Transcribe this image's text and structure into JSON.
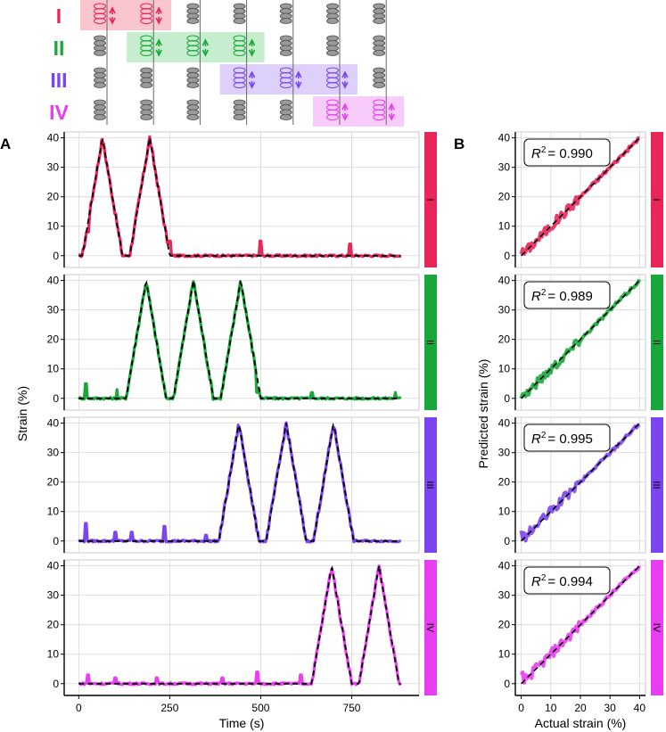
{
  "schematic": {
    "rows": [
      {
        "label": "I",
        "color": "#e8265a",
        "fill": "#f9c5cf"
      },
      {
        "label": "II",
        "color": "#18a83a",
        "fill": "#c6edce"
      },
      {
        "label": "III",
        "color": "#7b46f0",
        "fill": "#ddd0fb"
      },
      {
        "label": "IV",
        "color": "#e83df0",
        "fill": "#f8ccfa"
      }
    ],
    "sensor_columns": 7,
    "highlight_spans": [
      [
        0,
        1
      ],
      [
        1,
        3
      ],
      [
        3,
        5
      ],
      [
        5,
        6
      ]
    ]
  },
  "panel_letters": {
    "a": "A",
    "b": "B"
  },
  "chart_data": [
    {
      "type": "line",
      "panel": "A",
      "xlabel": "Time (s)",
      "ylabel": "Strain (%)",
      "xlim": [
        -40,
        935
      ],
      "ylim": [
        -4,
        42
      ],
      "xticks": [
        0,
        250,
        500,
        750
      ],
      "yticks": [
        0,
        10,
        20,
        30,
        40
      ],
      "grid": true,
      "facets": [
        {
          "strip_label": "I",
          "color": "#e8265a",
          "peaks": [
            65,
            195
          ],
          "spikes": [
            [
              25,
              8
            ],
            [
              250,
              5
            ],
            [
              500,
              5
            ],
            [
              745,
              4
            ]
          ]
        },
        {
          "strip_label": "II",
          "color": "#18a83a",
          "peaks": [
            185,
            315,
            445
          ],
          "spikes": [
            [
              20,
              5
            ],
            [
              105,
              3
            ],
            [
              490,
              2
            ],
            [
              640,
              2
            ],
            [
              870,
              2
            ]
          ]
        },
        {
          "strip_label": "III",
          "color": "#7b46f0",
          "peaks": [
            440,
            570,
            700
          ],
          "spikes": [
            [
              20,
              6
            ],
            [
              100,
              3
            ],
            [
              145,
              3
            ],
            [
              235,
              5
            ],
            [
              350,
              2
            ]
          ]
        },
        {
          "strip_label": "IV",
          "color": "#e83df0",
          "peaks": [
            695,
            825
          ],
          "spikes": [
            [
              25,
              3
            ],
            [
              100,
              2
            ],
            [
              215,
              2
            ],
            [
              395,
              2
            ],
            [
              490,
              4
            ],
            [
              610,
              3
            ]
          ]
        }
      ],
      "peak_value": 40,
      "reference_line": {
        "style": "dashed",
        "color": "#000000",
        "name": "Actual strain"
      }
    },
    {
      "type": "scatter",
      "panel": "B",
      "xlabel": "Actual strain (%)",
      "ylabel": "Predicted strain (%)",
      "xlim": [
        -2,
        42
      ],
      "ylim": [
        -4,
        42
      ],
      "xticks": [
        0,
        10,
        20,
        30,
        40
      ],
      "yticks": [
        0,
        10,
        20,
        30,
        40
      ],
      "grid": true,
      "facets": [
        {
          "strip_label": "I",
          "color": "#e8265a",
          "r2_label": "R",
          "r2_value": "= 0.990"
        },
        {
          "strip_label": "II",
          "color": "#18a83a",
          "r2_label": "R",
          "r2_value": "= 0.989"
        },
        {
          "strip_label": "III",
          "color": "#7b46f0",
          "r2_label": "R",
          "r2_value": "= 0.995"
        },
        {
          "strip_label": "IV",
          "color": "#e83df0",
          "r2_label": "R",
          "r2_value": "= 0.994"
        }
      ],
      "r2_superscript": "2"
    }
  ]
}
